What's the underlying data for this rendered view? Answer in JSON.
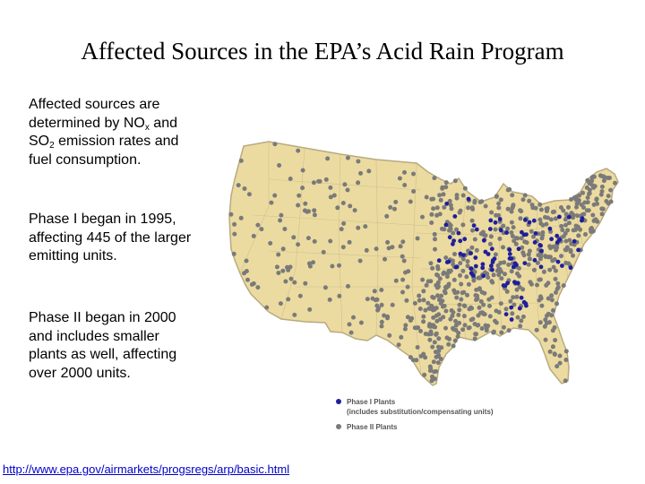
{
  "title": "Affected Sources in the EPA’s Acid Rain Program",
  "para1": {
    "line1": "Affected sources are",
    "line2_a": "determined by NO",
    "line2_sub": "x",
    "line2_b": " and",
    "line3_a": "SO",
    "line3_sub": "2",
    "line3_b": " emission rates and",
    "line4": "fuel consumption."
  },
  "para2": {
    "line1": "Phase I began in 1995,",
    "line2": "affecting 445 of the larger",
    "line3": "emitting units."
  },
  "para3": {
    "line1": "Phase II began in 2000",
    "line2": "and includes smaller",
    "line3": "plants as well, affecting",
    "line4": "over 2000 units."
  },
  "map": {
    "land_color": "#ecdba0",
    "border_color": "#b8aa80",
    "phase1_color": "#1f1f9c",
    "phase2_color": "#7a7a7a"
  },
  "legend": {
    "phase1_label": "Phase I Plants",
    "phase1_note": "(includes substitution/compensating units)",
    "phase2_label": "Phase II Plants"
  },
  "link": {
    "url": "http://www.epa.gov/airmarkets/progsregs/arp/basic.html"
  }
}
